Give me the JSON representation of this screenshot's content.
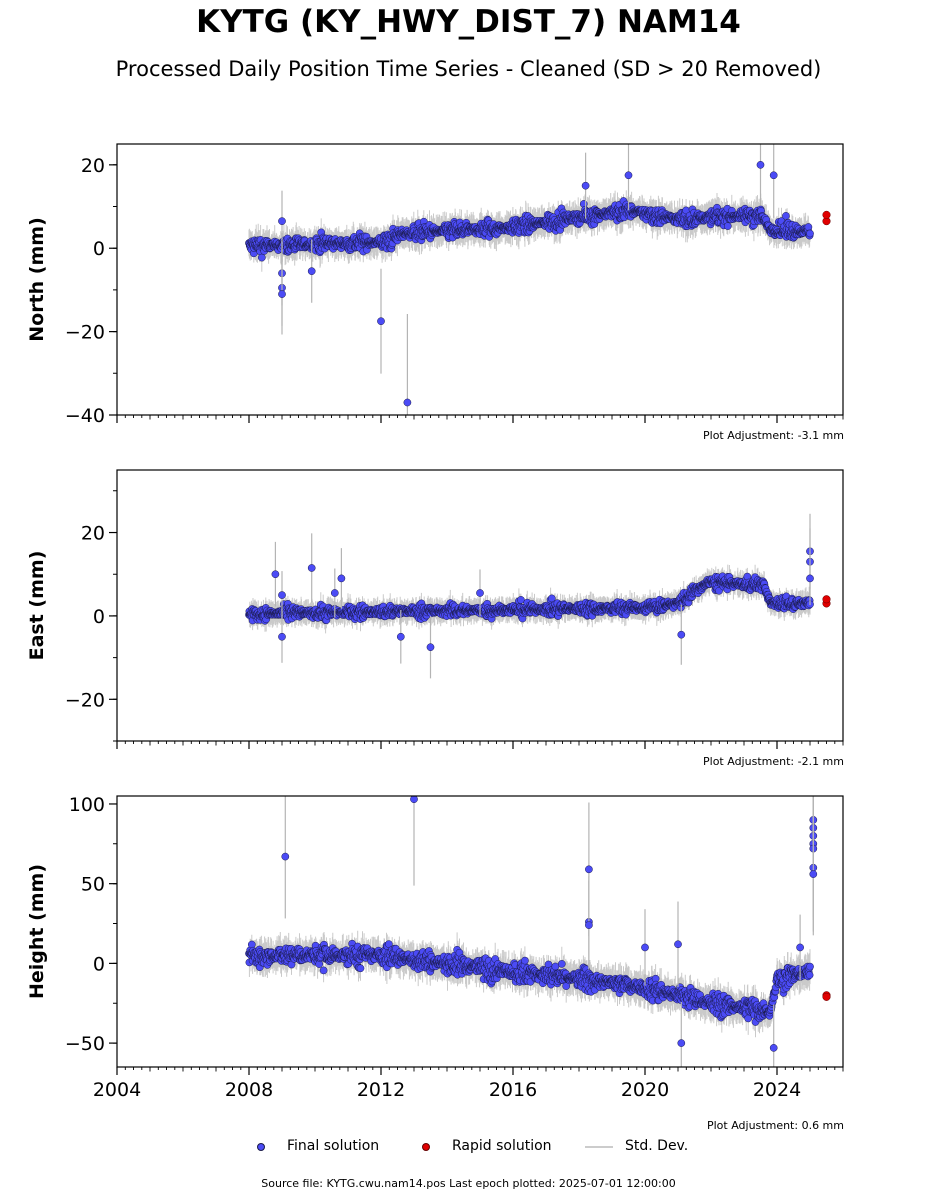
{
  "title": "KYTG (KY_HWY_DIST_7) NAM14",
  "subtitle": "Processed Daily Position Time Series - Cleaned (SD > 20 Removed)",
  "footer": "Source file: KYTG.cwu.nam14.pos  Last epoch plotted: 2025-07-01 12:00:00",
  "colors": {
    "final": "#4b4bf5",
    "rapid": "#e00000",
    "stddev": "#b4b4b4",
    "edge": "#1a1a4a"
  },
  "legend": {
    "final_label": "Final solution",
    "rapid_label": "Rapid solution",
    "std_label": "Std. Dev.",
    "placement": "bottom-center"
  },
  "chart_data": [
    {
      "type": "scatter",
      "ylabel": "North (mm)",
      "adjustment": "Plot Adjustment: -3.1 mm",
      "xlim": [
        2004,
        2026
      ],
      "ylim": [
        -40,
        25
      ],
      "x_ticks": [
        2004,
        2008,
        2012,
        2016,
        2020,
        2024
      ],
      "x_tick_labels_shown": false,
      "y_ticks": [
        -40,
        -20,
        0,
        20
      ],
      "y_tick_labels": [
        "−40",
        "−20",
        "0",
        "20"
      ],
      "trend": [
        [
          2008.0,
          0.5
        ],
        [
          2012.2,
          1.5
        ],
        [
          2012.6,
          3.5
        ],
        [
          2016,
          5
        ],
        [
          2018,
          7.5
        ],
        [
          2019.5,
          9
        ],
        [
          2021,
          7
        ],
        [
          2023.5,
          8
        ],
        [
          2023.8,
          4.5
        ],
        [
          2025.0,
          4
        ]
      ],
      "series": [
        {
          "name": "Final solution",
          "outliers": [
            [
              2009.0,
              6.5
            ],
            [
              2009.0,
              -6
            ],
            [
              2009.0,
              -9.5
            ],
            [
              2009.0,
              -11
            ],
            [
              2009.9,
              -5.5
            ],
            [
              2012.0,
              -17.5
            ],
            [
              2012.8,
              -37
            ],
            [
              2018.2,
              15
            ],
            [
              2019.5,
              17.5
            ],
            [
              2023.5,
              20
            ],
            [
              2023.9,
              17.5
            ]
          ]
        },
        {
          "name": "Rapid solution",
          "points": [
            [
              2025.5,
              6.5
            ],
            [
              2025.5,
              8
            ]
          ]
        }
      ]
    },
    {
      "type": "scatter",
      "ylabel": "East (mm)",
      "adjustment": "Plot Adjustment: -2.1 mm",
      "xlim": [
        2004,
        2026
      ],
      "ylim": [
        -30,
        35
      ],
      "x_ticks": [
        2004,
        2008,
        2012,
        2016,
        2020,
        2024
      ],
      "x_tick_labels_shown": false,
      "y_ticks": [
        -20,
        0,
        20
      ],
      "y_tick_labels": [
        "−20",
        "0",
        "20"
      ],
      "trend": [
        [
          2008.0,
          0.5
        ],
        [
          2012,
          1
        ],
        [
          2016,
          1.5
        ],
        [
          2020,
          2
        ],
        [
          2021,
          3
        ],
        [
          2021.9,
          8
        ],
        [
          2023.6,
          7.5
        ],
        [
          2023.8,
          3
        ],
        [
          2025.0,
          3
        ]
      ],
      "series": [
        {
          "name": "Final solution",
          "outliers": [
            [
              2008.8,
              10
            ],
            [
              2009.0,
              5
            ],
            [
              2009.0,
              -5
            ],
            [
              2009.9,
              11.5
            ],
            [
              2010.8,
              9
            ],
            [
              2010.6,
              5.5
            ],
            [
              2012.6,
              -5
            ],
            [
              2013.5,
              -7.5
            ],
            [
              2015.0,
              5.5
            ],
            [
              2021.1,
              -4.5
            ],
            [
              2025.0,
              15.5
            ],
            [
              2025.0,
              13
            ],
            [
              2025.0,
              9
            ]
          ]
        },
        {
          "name": "Rapid solution",
          "points": [
            [
              2025.5,
              3
            ],
            [
              2025.5,
              4
            ]
          ]
        }
      ]
    },
    {
      "type": "scatter",
      "ylabel": "Height (mm)",
      "adjustment": "Plot Adjustment: 0.6 mm",
      "xlim": [
        2004,
        2026
      ],
      "ylim": [
        -65,
        105
      ],
      "x_ticks": [
        2004,
        2008,
        2012,
        2016,
        2020,
        2024
      ],
      "x_tick_labels": [
        "2004",
        "2008",
        "2012",
        "2016",
        "2020",
        "2024"
      ],
      "x_tick_labels_shown": true,
      "y_ticks": [
        -50,
        0,
        50,
        100
      ],
      "y_tick_labels": [
        "−50",
        "0",
        "50",
        "100"
      ],
      "trend": [
        [
          2008.0,
          5
        ],
        [
          2012,
          5
        ],
        [
          2016,
          -5
        ],
        [
          2020,
          -15
        ],
        [
          2022,
          -25
        ],
        [
          2023.8,
          -30
        ],
        [
          2024,
          -10
        ],
        [
          2025.0,
          -5
        ]
      ],
      "series": [
        {
          "name": "Final solution",
          "outliers": [
            [
              2009.1,
              67
            ],
            [
              2013.0,
              103
            ],
            [
              2018.3,
              59
            ],
            [
              2018.3,
              26
            ],
            [
              2018.3,
              24
            ],
            [
              2020.0,
              10
            ],
            [
              2021.0,
              12
            ],
            [
              2021.1,
              -50
            ],
            [
              2023.9,
              -53
            ],
            [
              2024.7,
              10
            ],
            [
              2025.1,
              90
            ],
            [
              2025.1,
              85
            ],
            [
              2025.1,
              80
            ],
            [
              2025.1,
              75
            ],
            [
              2025.1,
              72
            ],
            [
              2025.1,
              60
            ],
            [
              2025.1,
              56
            ]
          ]
        },
        {
          "name": "Rapid solution",
          "points": [
            [
              2025.5,
              -20
            ],
            [
              2025.5,
              -21
            ]
          ]
        }
      ]
    }
  ]
}
